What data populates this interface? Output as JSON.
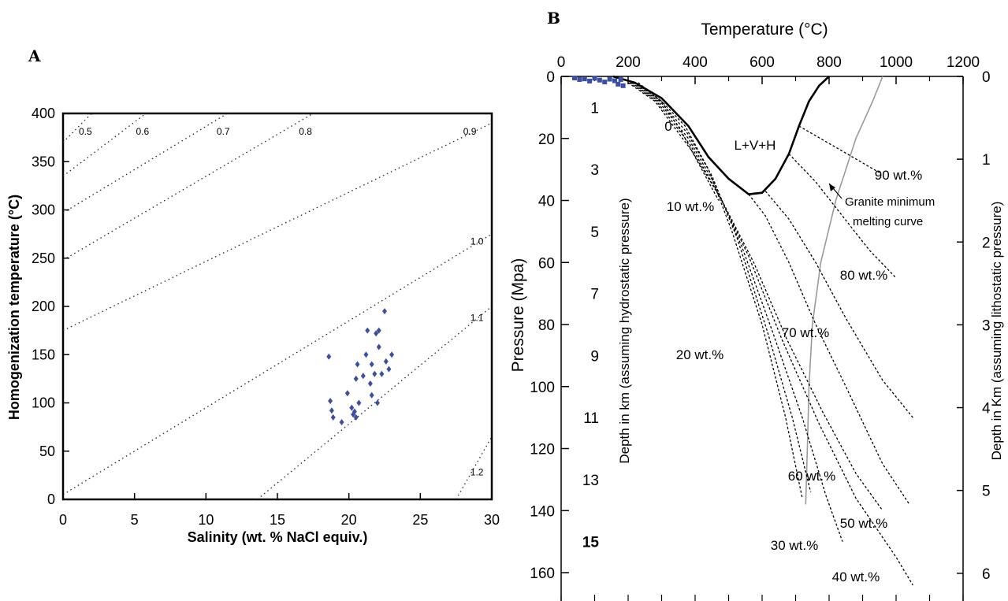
{
  "panels": {
    "a": "A",
    "b": "B"
  },
  "chart_data": [
    {
      "type": "scatter",
      "xlabel": "Salinity (wt. % NaCl equiv.)",
      "ylabel": "Homogenization temperature (°C)",
      "xlim": [
        0,
        30
      ],
      "ylim": [
        0,
        400
      ],
      "x_ticks": [
        "0",
        "5",
        "10",
        "15",
        "20",
        "25",
        "30"
      ],
      "y_ticks": [
        "0",
        "50",
        "100",
        "150",
        "200",
        "250",
        "300",
        "350",
        "400"
      ],
      "marker_color": "#3c4fa0",
      "isochore_labels": [
        "0.5",
        "0.6",
        "0.7",
        "0.8",
        "0.9",
        "1.0",
        "1.1",
        "1.2"
      ],
      "isochores": [
        {
          "label": "0.5",
          "x": [
            0,
            2.0
          ],
          "y": [
            370,
            400
          ]
        },
        {
          "label": "0.6",
          "x": [
            0,
            5.8
          ],
          "y": [
            335,
            400
          ]
        },
        {
          "label": "0.7",
          "x": [
            0,
            11.5
          ],
          "y": [
            297,
            400
          ]
        },
        {
          "label": "0.8",
          "x": [
            0,
            17.5
          ],
          "y": [
            248,
            400
          ]
        },
        {
          "label": "0.9",
          "x": [
            0,
            30
          ],
          "y": [
            175,
            390
          ]
        },
        {
          "label": "1.0",
          "x": [
            0,
            30
          ],
          "y": [
            5,
            275
          ]
        },
        {
          "label": "1.1",
          "x": [
            13.6,
            30
          ],
          "y": [
            0,
            200
          ]
        },
        {
          "label": "1.2",
          "x": [
            27.5,
            30
          ],
          "y": [
            0,
            65
          ]
        }
      ],
      "points": [
        [
          18.6,
          148
        ],
        [
          18.7,
          102
        ],
        [
          18.8,
          92
        ],
        [
          18.9,
          85
        ],
        [
          19.5,
          80
        ],
        [
          19.9,
          110
        ],
        [
          20.2,
          95
        ],
        [
          20.3,
          88
        ],
        [
          20.4,
          91
        ],
        [
          20.5,
          85
        ],
        [
          20.5,
          125
        ],
        [
          20.6,
          140
        ],
        [
          20.7,
          100
        ],
        [
          21.0,
          128
        ],
        [
          21.2,
          150
        ],
        [
          21.3,
          175
        ],
        [
          21.5,
          120
        ],
        [
          21.6,
          140
        ],
        [
          21.6,
          108
        ],
        [
          21.8,
          130
        ],
        [
          21.9,
          172
        ],
        [
          22.0,
          100
        ],
        [
          22.1,
          175
        ],
        [
          22.1,
          158
        ],
        [
          22.3,
          130
        ],
        [
          22.5,
          195
        ],
        [
          22.6,
          143
        ],
        [
          22.8,
          135
        ],
        [
          23.0,
          150
        ]
      ]
    },
    {
      "type": "line",
      "title": "Temperature (°C)",
      "xlabel": "Temperature (°C)",
      "ylabel": "Pressure (Mpa)",
      "y2label_left": "Depth in km (assuming hydrostatic pressure)",
      "y2label_right": "Depth in Km (assuming lithostatic pressure)",
      "xlim": [
        0,
        1200
      ],
      "ylim": [
        0,
        170
      ],
      "x_ticks": [
        "0",
        "200",
        "400",
        "600",
        "800",
        "1000",
        "1200"
      ],
      "y_ticks": [
        "0",
        "20",
        "40",
        "60",
        "80",
        "100",
        "120",
        "140",
        "160"
      ],
      "hydrostatic_depth_ticks": [
        "1",
        "3",
        "5",
        "7",
        "9",
        "11",
        "13",
        "15"
      ],
      "lithostatic_depth_ticks": [
        "0",
        "1",
        "2",
        "3",
        "4",
        "5",
        "6"
      ],
      "region_label": "L+V+H",
      "annotation": "Granite minimum melting curve",
      "annotation_lines": [
        "Granite minimum",
        "melting curve"
      ],
      "sample_points": [
        [
          40,
          0.5
        ],
        [
          55,
          1.0
        ],
        [
          70,
          0.8
        ],
        [
          85,
          1.5
        ],
        [
          100,
          0.6
        ],
        [
          115,
          1.2
        ],
        [
          130,
          1.8
        ],
        [
          145,
          0.9
        ],
        [
          160,
          1.4
        ],
        [
          170,
          2.5
        ],
        [
          178,
          1.0
        ],
        [
          185,
          3.0
        ]
      ],
      "series": [
        {
          "name": "L+V+H boundary",
          "x": [
            155,
            220,
            300,
            380,
            440,
            500,
            560,
            600,
            640,
            680,
            710,
            740,
            770,
            800
          ],
          "y": [
            0,
            2,
            7,
            16,
            26,
            33,
            38,
            37.5,
            33,
            25,
            16,
            8,
            3,
            0
          ]
        },
        {
          "name": "Granite minimum melting curve",
          "x": [
            960,
            930,
            880,
            820,
            775,
            750,
            740,
            735,
            730
          ],
          "y": [
            0,
            8,
            20,
            40,
            60,
            80,
            100,
            120,
            138
          ]
        },
        {
          "name": "0",
          "x": [
            230,
            300,
            360,
            420,
            470
          ],
          "y": [
            2,
            8,
            18,
            30,
            40
          ]
        },
        {
          "name": "10 wt.%",
          "x": [
            220,
            300,
            370,
            440,
            510,
            600,
            670,
            720
          ],
          "y": [
            2,
            8,
            16,
            30,
            50,
            80,
            110,
            136
          ]
        },
        {
          "name": "20 wt.%",
          "x": [
            215,
            295,
            375,
            450,
            525,
            615,
            690,
            745
          ],
          "y": [
            2,
            8,
            18,
            32,
            52,
            82,
            110,
            134
          ]
        },
        {
          "name": "30 wt.%",
          "x": [
            210,
            290,
            380,
            460,
            540,
            630,
            720,
            790,
            840
          ],
          "y": [
            2,
            8,
            20,
            35,
            55,
            82,
            110,
            135,
            150
          ]
        },
        {
          "name": "40 wt.%",
          "x": [
            205,
            285,
            385,
            470,
            560,
            660,
            770,
            880,
            1000,
            1050
          ],
          "y": [
            2,
            8,
            22,
            38,
            58,
            85,
            112,
            136,
            155,
            164
          ]
        },
        {
          "name": "50 wt.%",
          "x": [
            200,
            280,
            390,
            480,
            575,
            675,
            780,
            880,
            960
          ],
          "y": [
            2,
            8,
            24,
            40,
            60,
            85,
            108,
            128,
            140
          ]
        },
        {
          "name": "60 wt.%",
          "x": [
            560,
            610,
            680,
            760,
            850,
            960,
            1040
          ],
          "y": [
            38,
            45,
            60,
            80,
            100,
            125,
            138
          ]
        },
        {
          "name": "70 wt.%",
          "x": [
            610,
            680,
            760,
            850,
            960,
            1050
          ],
          "y": [
            37,
            46,
            60,
            78,
            98,
            110
          ]
        },
        {
          "name": "80 wt.%",
          "x": [
            680,
            760,
            840,
            920,
            1000
          ],
          "y": [
            25,
            34,
            45,
            56,
            65
          ]
        },
        {
          "name": "90 wt.%",
          "x": [
            710,
            790,
            870,
            950
          ],
          "y": [
            16,
            21,
            26,
            31
          ]
        }
      ],
      "curve_labels": [
        "0",
        "10 wt.%",
        "20 wt.%",
        "30 wt.%",
        "40 wt.%",
        "50 wt.%",
        "60 wt.%",
        "70 wt.%",
        "80 wt.%",
        "90 wt.%"
      ],
      "marker_color": "#3c4fa0"
    }
  ]
}
